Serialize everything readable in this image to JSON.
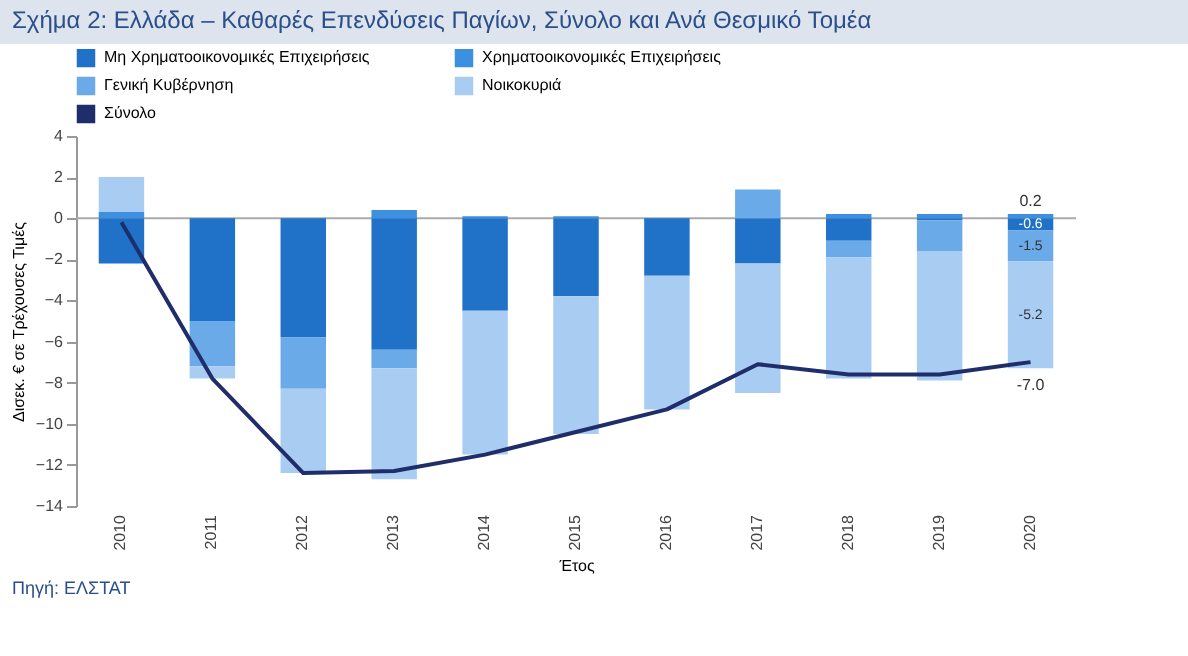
{
  "chart_data": {
    "type": "bar",
    "stacked": true,
    "title": "Σχήμα 2: Ελλάδα – Καθαρές Επενδύσεις Παγίων, Σύνολο και Ανά Θεσμικό Τομέα",
    "xlabel": "Έτος",
    "ylabel": "Δισεκ. € σε Τρέχουσες Τιμές",
    "categories": [
      "2010",
      "2011",
      "2012",
      "2013",
      "2014",
      "2015",
      "2016",
      "2017",
      "2018",
      "2019",
      "2020"
    ],
    "series": [
      {
        "name": "Μη Χρηματοοικονομικές Επιχειρήσεις",
        "color": "#1f72c8",
        "values": [
          -2.2,
          -5.0,
          -5.8,
          -6.4,
          -4.5,
          -3.8,
          -2.8,
          -2.2,
          -1.1,
          -0.1,
          -0.6
        ],
        "value_labels": [
          null,
          null,
          null,
          null,
          null,
          null,
          null,
          null,
          null,
          null,
          "-0.6"
        ]
      },
      {
        "name": "Χρηματοοικονομικές Επιχειρήσεις",
        "color": "#3d8fe0",
        "values": [
          0.3,
          0,
          0,
          0.4,
          0.1,
          0.1,
          0,
          0,
          0.2,
          0.2,
          0.2
        ],
        "value_labels": [
          null,
          null,
          null,
          null,
          null,
          null,
          null,
          null,
          null,
          null,
          "0.2"
        ]
      },
      {
        "name": "Γενική Κυβέρνηση",
        "color": "#6aaae8",
        "values": [
          0,
          -2.2,
          -2.5,
          -0.9,
          0,
          0,
          0,
          1.4,
          -0.8,
          -1.5,
          -1.5
        ],
        "value_labels": [
          null,
          null,
          null,
          null,
          null,
          null,
          null,
          null,
          null,
          null,
          "-1.5"
        ]
      },
      {
        "name": "Νοικοκυριά",
        "color": "#a9cdf2",
        "values": [
          1.7,
          -0.6,
          -4.1,
          -5.4,
          -7.0,
          -6.7,
          -6.5,
          -6.3,
          -5.9,
          -6.3,
          -5.2
        ],
        "value_labels": [
          null,
          null,
          null,
          null,
          null,
          null,
          null,
          null,
          null,
          null,
          "-5.2"
        ]
      },
      {
        "name": "Σύνολο",
        "type": "line",
        "color": "#1f2d6b",
        "values": [
          -0.2,
          -7.8,
          -12.4,
          -12.3,
          -11.5,
          -10.4,
          -9.3,
          -7.1,
          -7.6,
          -7.6,
          -7.0
        ],
        "value_labels": [
          null,
          null,
          null,
          null,
          null,
          null,
          null,
          null,
          null,
          null,
          "-7.0"
        ]
      }
    ],
    "ylim": [
      -14,
      4
    ],
    "yticks": [
      -14,
      -12,
      -10,
      -8,
      -6,
      -4,
      -2,
      0,
      2,
      4
    ],
    "legend": "top",
    "ref_lines": [
      {
        "axis": "y",
        "value": 0,
        "color": "#aaaaaa"
      }
    ],
    "annotations": [
      "Πηγή: ΕΛΣΤΑΤ"
    ]
  }
}
